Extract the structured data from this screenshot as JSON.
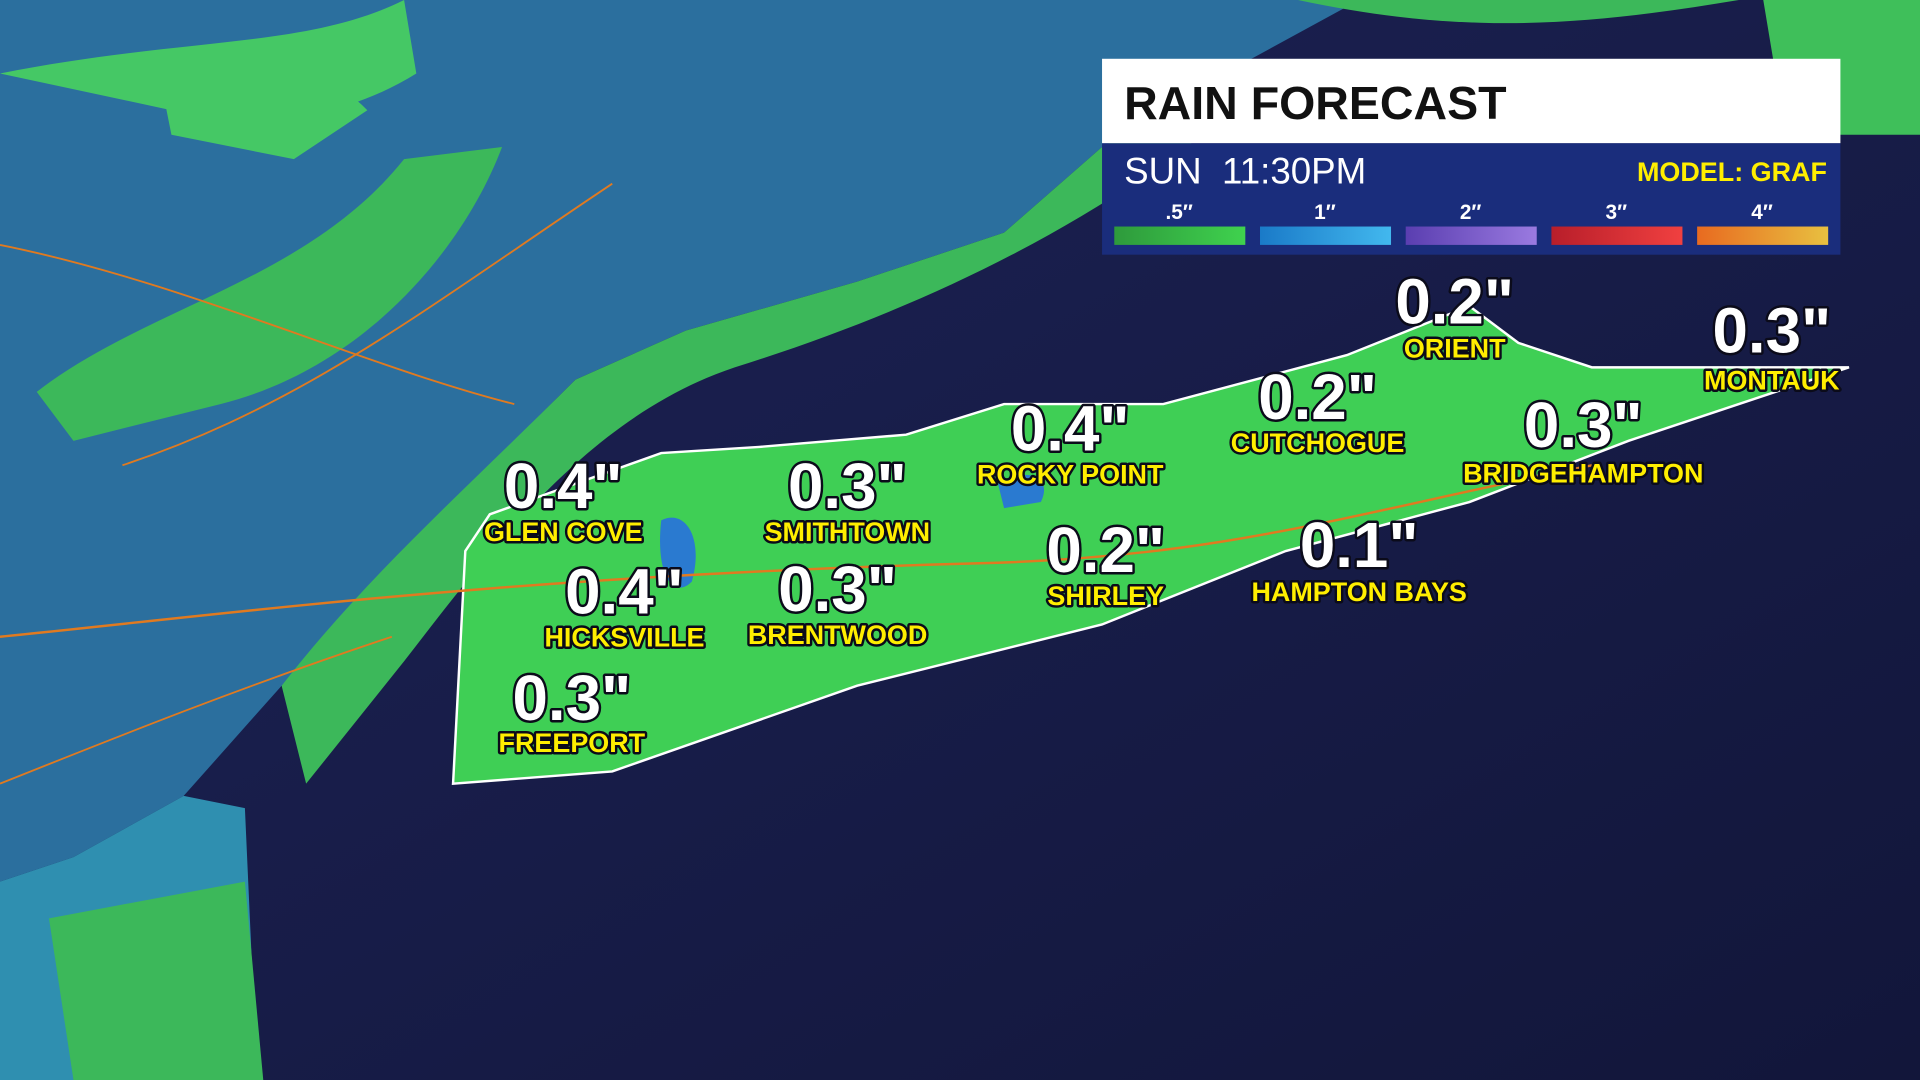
{
  "header": {
    "title": "RAIN FORECAST",
    "time": "SUN  11:30PM",
    "model": "MODEL: GRAF"
  },
  "legend": [
    ".5″",
    "1″",
    "2″",
    "3″",
    "4″"
  ],
  "locations": [
    {
      "name": "GLEN COVE",
      "amount": "0.4\""
    },
    {
      "name": "HICKSVILLE",
      "amount": "0.4\""
    },
    {
      "name": "FREEPORT",
      "amount": "0.3\""
    },
    {
      "name": "SMITHTOWN",
      "amount": "0.3\""
    },
    {
      "name": "BRENTWOOD",
      "amount": "0.3\""
    },
    {
      "name": "ROCKY POINT",
      "amount": "0.4\""
    },
    {
      "name": "SHIRLEY",
      "amount": "0.2\""
    },
    {
      "name": "CUTCHOGUE",
      "amount": "0.2\""
    },
    {
      "name": "ORIENT",
      "amount": "0.2\""
    },
    {
      "name": "HAMPTON BAYS",
      "amount": "0.1\""
    },
    {
      "name": "BRIDGEHAMPTON",
      "amount": "0.3\""
    },
    {
      "name": "MONTAUK",
      "amount": "0.3\""
    }
  ]
}
